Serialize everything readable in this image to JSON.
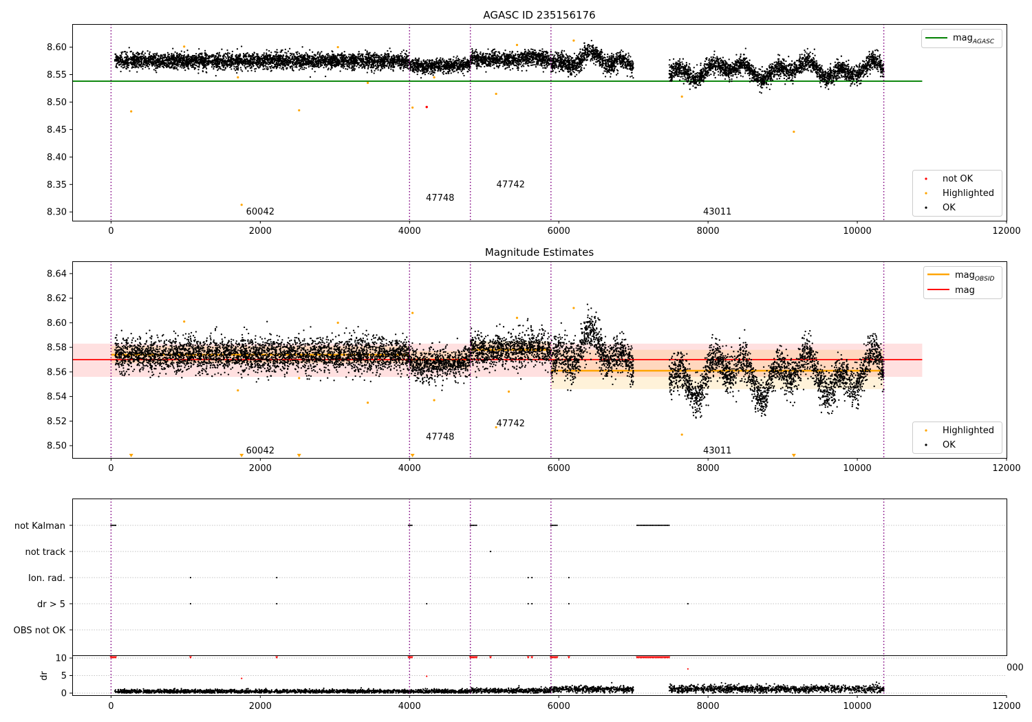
{
  "figure": {
    "background": "#ffffff"
  },
  "colors": {
    "ok": "#000000",
    "highlighted": "#ffa500",
    "not_ok": "#ff0000",
    "mag_agasc": "#008000",
    "mag": "#ff0000",
    "mag_obsid": "#ffa500",
    "obs_boundary": "#800080",
    "grid": "#b0b0b0"
  },
  "chart_data": [
    {
      "type": "scatter",
      "title": "AGASC ID 235156176",
      "xlabel": "",
      "ylabel": "",
      "xlim": [
        -520,
        12000
      ],
      "ylim": [
        8.284,
        8.642
      ],
      "xticks": [
        0,
        2000,
        4000,
        6000,
        8000,
        10000,
        12000
      ],
      "yticks": [
        8.3,
        8.35,
        8.4,
        8.45,
        8.5,
        8.55,
        8.6
      ],
      "mag_agasc": 8.538,
      "mag_agasc_xrange": [
        -520,
        10870
      ],
      "obs_boundaries": [
        0,
        4000,
        4815,
        5895,
        10355
      ],
      "obsids": [
        {
          "label": "60042",
          "x": 2000,
          "y": 8.3
        },
        {
          "label": "47748",
          "x": 4410,
          "y": 8.325
        },
        {
          "label": "47742",
          "x": 5355,
          "y": 8.35
        },
        {
          "label": "43011",
          "x": 8125,
          "y": 8.3
        }
      ],
      "segments": [
        {
          "x0": 50,
          "x1": 4000,
          "center": 8.575,
          "spread": 0.007,
          "waves": 0.0
        },
        {
          "x0": 4000,
          "x1": 4815,
          "center": 8.566,
          "spread": 0.006,
          "waves": 0.002
        },
        {
          "x0": 4815,
          "x1": 5895,
          "center": 8.578,
          "spread": 0.007,
          "waves": 0.003
        },
        {
          "x0": 5895,
          "x1": 7000,
          "center": 8.575,
          "spread": 0.008,
          "waves": 0.018
        },
        {
          "x0": 7480,
          "x1": 10355,
          "center": 8.558,
          "spread": 0.008,
          "waves": 0.018
        }
      ],
      "highlighted_points": [
        {
          "x": 270,
          "y": 8.483
        },
        {
          "x": 1750,
          "y": 8.313
        },
        {
          "x": 2520,
          "y": 8.485
        },
        {
          "x": 3440,
          "y": 8.535
        },
        {
          "x": 4040,
          "y": 8.49
        },
        {
          "x": 4330,
          "y": 8.545
        },
        {
          "x": 5160,
          "y": 8.515
        },
        {
          "x": 7650,
          "y": 8.51
        },
        {
          "x": 9150,
          "y": 8.446
        },
        {
          "x": 1700,
          "y": 8.545
        },
        {
          "x": 980,
          "y": 8.601
        },
        {
          "x": 3040,
          "y": 8.6
        },
        {
          "x": 5440,
          "y": 8.604
        },
        {
          "x": 6200,
          "y": 8.612
        }
      ],
      "not_ok_points": [
        {
          "x": 4230,
          "y": 8.491
        }
      ],
      "legends": [
        {
          "position": "top-right",
          "entries": [
            {
              "label": "mag",
              "sub": "AGASC",
              "kind": "line",
              "color_key": "mag_agasc"
            }
          ]
        },
        {
          "position": "lower-right",
          "entries": [
            {
              "label": "not OK",
              "kind": "dot",
              "color_key": "not_ok"
            },
            {
              "label": "Highlighted",
              "kind": "dot",
              "color_key": "highlighted"
            },
            {
              "label": "OK",
              "kind": "dot",
              "color_key": "ok"
            }
          ]
        }
      ]
    },
    {
      "type": "scatter",
      "title": "Magnitude Estimates",
      "xlabel": "",
      "ylabel": "",
      "xlim": [
        -520,
        12000
      ],
      "ylim": [
        8.49,
        8.65
      ],
      "xticks": [
        0,
        2000,
        4000,
        6000,
        8000,
        10000,
        12000
      ],
      "yticks": [
        8.5,
        8.52,
        8.54,
        8.56,
        8.58,
        8.6,
        8.62,
        8.64
      ],
      "mag": 8.57,
      "mag_band": [
        8.556,
        8.583
      ],
      "mag_xrange": [
        -520,
        10870
      ],
      "obs_boundaries": [
        0,
        4000,
        4815,
        5895,
        10355
      ],
      "obsid_mags": [
        {
          "x0": 0,
          "x1": 4000,
          "mag": 8.574,
          "band": [
            8.567,
            8.581
          ]
        },
        {
          "x0": 4000,
          "x1": 4815,
          "mag": 8.57,
          "band": [
            8.563,
            8.577
          ]
        },
        {
          "x0": 4815,
          "x1": 5895,
          "mag": 8.578,
          "band": [
            8.571,
            8.585
          ]
        },
        {
          "x0": 5895,
          "x1": 10355,
          "mag": 8.561,
          "band": [
            8.546,
            8.578
          ]
        }
      ],
      "obsids": [
        {
          "label": "60042",
          "x": 2000,
          "y": 8.496
        },
        {
          "label": "47748",
          "x": 4410,
          "y": 8.507
        },
        {
          "label": "47742",
          "x": 5355,
          "y": 8.518
        },
        {
          "label": "43011",
          "x": 8125,
          "y": 8.496
        }
      ],
      "segments": [
        {
          "x0": 50,
          "x1": 4000,
          "center": 8.574,
          "spread": 0.007,
          "waves": 0.0
        },
        {
          "x0": 4000,
          "x1": 4815,
          "center": 8.567,
          "spread": 0.006,
          "waves": 0.002
        },
        {
          "x0": 4815,
          "x1": 5895,
          "center": 8.578,
          "spread": 0.007,
          "waves": 0.003
        },
        {
          "x0": 5895,
          "x1": 7000,
          "center": 8.575,
          "spread": 0.008,
          "waves": 0.018
        },
        {
          "x0": 7480,
          "x1": 10355,
          "center": 8.558,
          "spread": 0.008,
          "waves": 0.02
        }
      ],
      "highlighted_points": [
        {
          "x": 270,
          "y": 8.491
        },
        {
          "x": 1750,
          "y": 8.491
        },
        {
          "x": 2520,
          "y": 8.491
        },
        {
          "x": 4040,
          "y": 8.491
        },
        {
          "x": 9150,
          "y": 8.491
        },
        {
          "x": 3440,
          "y": 8.535
        },
        {
          "x": 4330,
          "y": 8.537
        },
        {
          "x": 5160,
          "y": 8.515
        },
        {
          "x": 7650,
          "y": 8.509
        },
        {
          "x": 5330,
          "y": 8.544
        },
        {
          "x": 980,
          "y": 8.601
        },
        {
          "x": 3040,
          "y": 8.6
        },
        {
          "x": 5440,
          "y": 8.604
        },
        {
          "x": 6200,
          "y": 8.612
        },
        {
          "x": 4040,
          "y": 8.608
        },
        {
          "x": 1700,
          "y": 8.545
        },
        {
          "x": 2520,
          "y": 8.555
        }
      ],
      "legends": [
        {
          "position": "top-right",
          "entries": [
            {
              "label": "mag",
              "sub": "OBSID",
              "kind": "line",
              "color_key": "mag_obsid"
            },
            {
              "label": "mag",
              "kind": "line",
              "color_key": "mag"
            }
          ]
        },
        {
          "position": "lower-right",
          "entries": [
            {
              "label": "Highlighted",
              "kind": "dot",
              "color_key": "highlighted"
            },
            {
              "label": "OK",
              "kind": "dot",
              "color_key": "ok"
            }
          ]
        }
      ]
    },
    {
      "type": "scatter",
      "title": "",
      "xlim": [
        -520,
        12000
      ],
      "categories": [
        "not Kalman",
        "not track",
        "Ion. rad.",
        "dr > 5",
        "OBS not OK"
      ],
      "flag_points": {
        "not Kalman": [
          [
            0,
            80
          ],
          [
            3990,
            4050
          ],
          [
            4815,
            4900
          ],
          [
            5895,
            5980
          ],
          [
            7050,
            7480
          ]
        ],
        "not track": [
          [
            5085,
            5085
          ]
        ],
        "Ion. rad.": [
          [
            1065,
            1065
          ],
          [
            2220,
            2220
          ],
          [
            5590,
            5590
          ],
          [
            5640,
            5640
          ],
          [
            6135,
            6135
          ]
        ],
        "dr > 5": [
          [
            1065,
            1065
          ],
          [
            2220,
            2220
          ],
          [
            4230,
            4230
          ],
          [
            5590,
            5590
          ],
          [
            5640,
            5640
          ],
          [
            6135,
            6135
          ],
          [
            7730,
            7730
          ]
        ],
        "OBS not OK": []
      },
      "obs_boundaries": [
        0,
        4000,
        4815,
        5895,
        10355
      ]
    },
    {
      "type": "scatter",
      "title": "",
      "xlabel": "",
      "ylabel": "dr",
      "xlim": [
        -520,
        12000
      ],
      "ylim": [
        -0.5,
        10.5
      ],
      "xticks": [
        0,
        2000,
        4000,
        6000,
        8000,
        10000,
        12000
      ],
      "yticks": [
        0,
        5,
        10
      ],
      "clipped_tick_label": "000",
      "obs_boundaries": [
        0,
        4000,
        4815,
        5895,
        10355
      ],
      "red_points": [
        {
          "x": 1750,
          "y": 4.2
        },
        {
          "x": 4230,
          "y": 4.8
        },
        {
          "x": 7730,
          "y": 6.9
        },
        {
          "x": 1065,
          "y": 9.8
        },
        {
          "x": 2220,
          "y": 9.8
        },
        {
          "x": 5085,
          "y": 9.8
        },
        {
          "x": 5590,
          "y": 9.8
        },
        {
          "x": 5640,
          "y": 9.8
        },
        {
          "x": 6135,
          "y": 9.8
        }
      ],
      "red_ranges": [
        [
          0,
          80
        ],
        [
          3990,
          4050
        ],
        [
          4815,
          4900
        ],
        [
          5895,
          5980
        ],
        [
          7050,
          7480
        ]
      ],
      "dr_segments": [
        {
          "x0": 50,
          "x1": 4815,
          "center": 0.4,
          "spread": 0.3
        },
        {
          "x0": 4815,
          "x1": 5895,
          "center": 0.6,
          "spread": 0.4
        },
        {
          "x0": 5895,
          "x1": 7000,
          "center": 1.0,
          "spread": 0.5
        },
        {
          "x0": 7480,
          "x1": 10355,
          "center": 1.1,
          "spread": 0.6
        }
      ]
    }
  ]
}
